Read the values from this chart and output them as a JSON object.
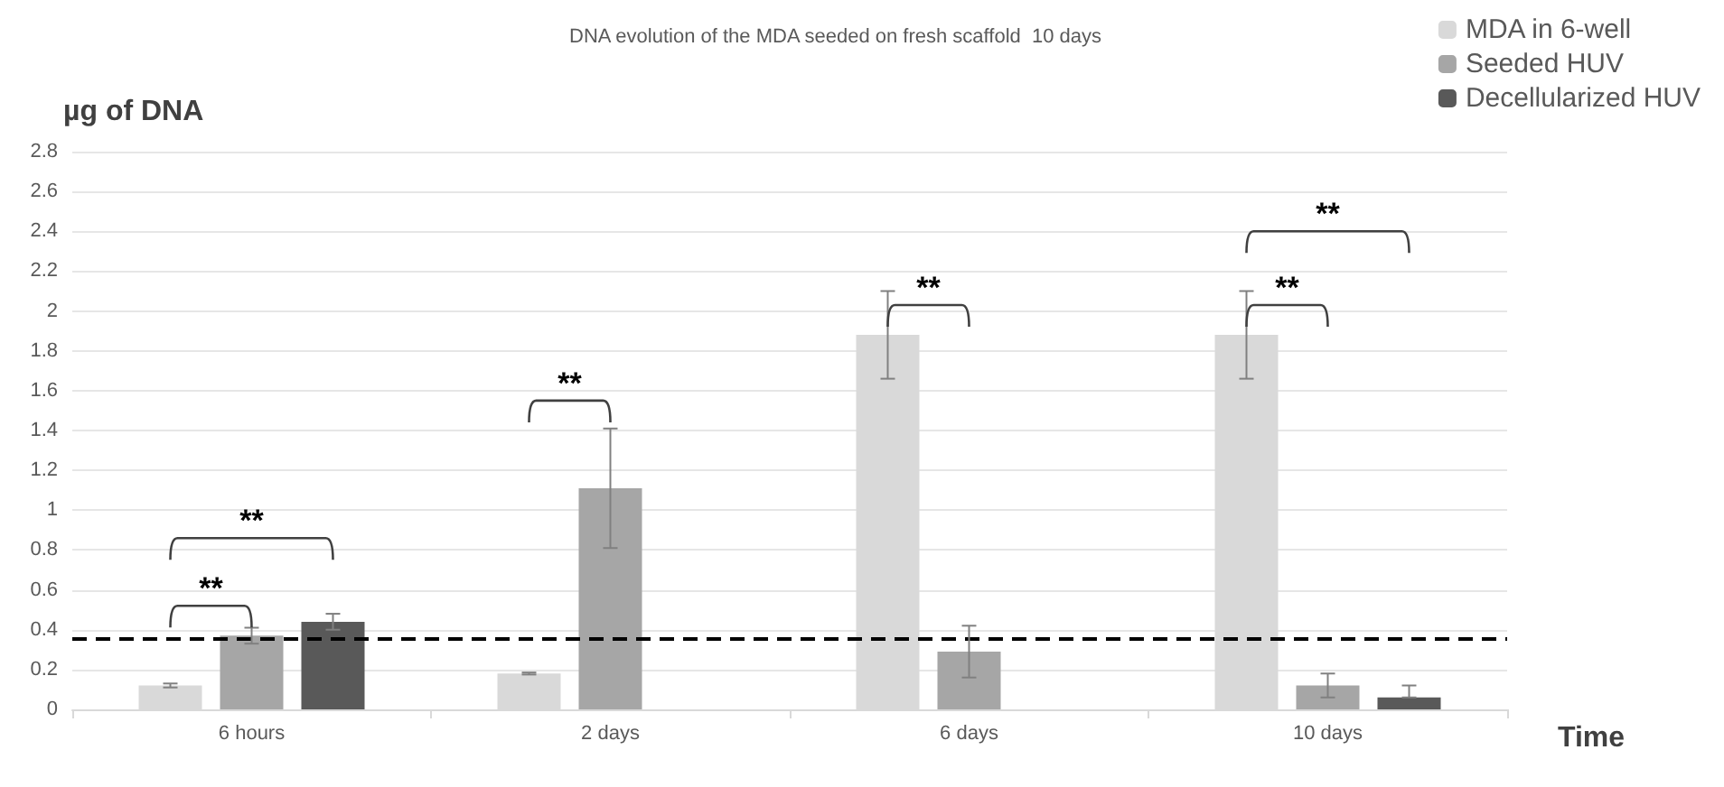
{
  "chart_data": {
    "type": "bar",
    "title": "DNA evolution of the MDA seeded on fresh scaffold  10 days",
    "xlabel": "Time",
    "ylabel": "µg of DNA",
    "categories": [
      "6 hours",
      "2 days",
      "6 days",
      "10 days"
    ],
    "series": [
      {
        "name": "MDA in 6-well",
        "color": "#d9d9d9",
        "values": [
          0.12,
          0.18,
          1.88,
          1.88
        ],
        "errors": [
          0.01,
          0.005,
          0.22,
          0.22
        ]
      },
      {
        "name": "Seeded HUV",
        "color": "#a6a6a6",
        "values": [
          0.37,
          1.11,
          0.29,
          0.12
        ],
        "errors": [
          0.04,
          0.3,
          0.13,
          0.06
        ]
      },
      {
        "name": "Decellularized HUV",
        "color": "#595959",
        "values": [
          0.44,
          null,
          null,
          0.06
        ],
        "errors": [
          0.04,
          null,
          null,
          [
            0.06,
            0.12
          ]
        ]
      }
    ],
    "ylim": [
      0,
      2.8
    ],
    "yticks": [
      0,
      0.2,
      0.4,
      0.6,
      0.8,
      1,
      1.2,
      1.4,
      1.6,
      1.8,
      2,
      2.2,
      2.4,
      2.6,
      2.8
    ],
    "grid": "y",
    "legend": "top right",
    "ref_lines": [
      {
        "axis": "y",
        "value": 0.36,
        "color": "#000000",
        "line_style": "dashed"
      }
    ],
    "annotations": [
      "**",
      "**",
      "**",
      "**",
      "**",
      "**"
    ]
  }
}
